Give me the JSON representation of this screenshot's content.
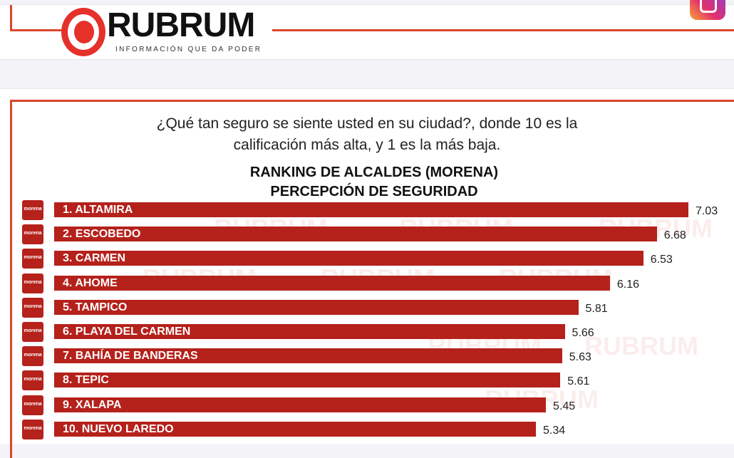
{
  "header": {
    "logo_text": "RUBRUM",
    "tagline": "INFORMACIÓN QUE DA PODER",
    "social_icon": "instagram-icon"
  },
  "chart_data": {
    "type": "bar",
    "orientation": "horizontal",
    "question_line1": "¿Qué tan seguro se siente usted en su ciudad?, donde 10 es la",
    "question_line2": "calificación más alta, y  1 es la más baja.",
    "title_line1": "RANKING DE ALCALDES  (MORENA)",
    "title_line2": "PERCEPCIÓN DE SEGURIDAD",
    "badge_label": "morena",
    "categories": [
      "1. ALTAMIRA",
      "2. ESCOBEDO",
      "3. CARMEN",
      "4. AHOME",
      "5. TAMPICO",
      "6. PLAYA DEL CARMEN",
      "7. BAHÍA DE BANDERAS",
      "8. TEPIC",
      "9. XALAPA",
      "10. NUEVO LAREDO"
    ],
    "values": [
      7.03,
      6.68,
      6.53,
      6.16,
      5.81,
      5.66,
      5.63,
      5.61,
      5.45,
      5.34
    ],
    "value_labels": [
      "7.03",
      "6.68",
      "6.53",
      "6.16",
      "5.81",
      "5.66",
      "5.63",
      "5.61",
      "5.45",
      "5.34"
    ],
    "bar_color": "#b5211b",
    "xlim": [
      0,
      7.03
    ]
  }
}
